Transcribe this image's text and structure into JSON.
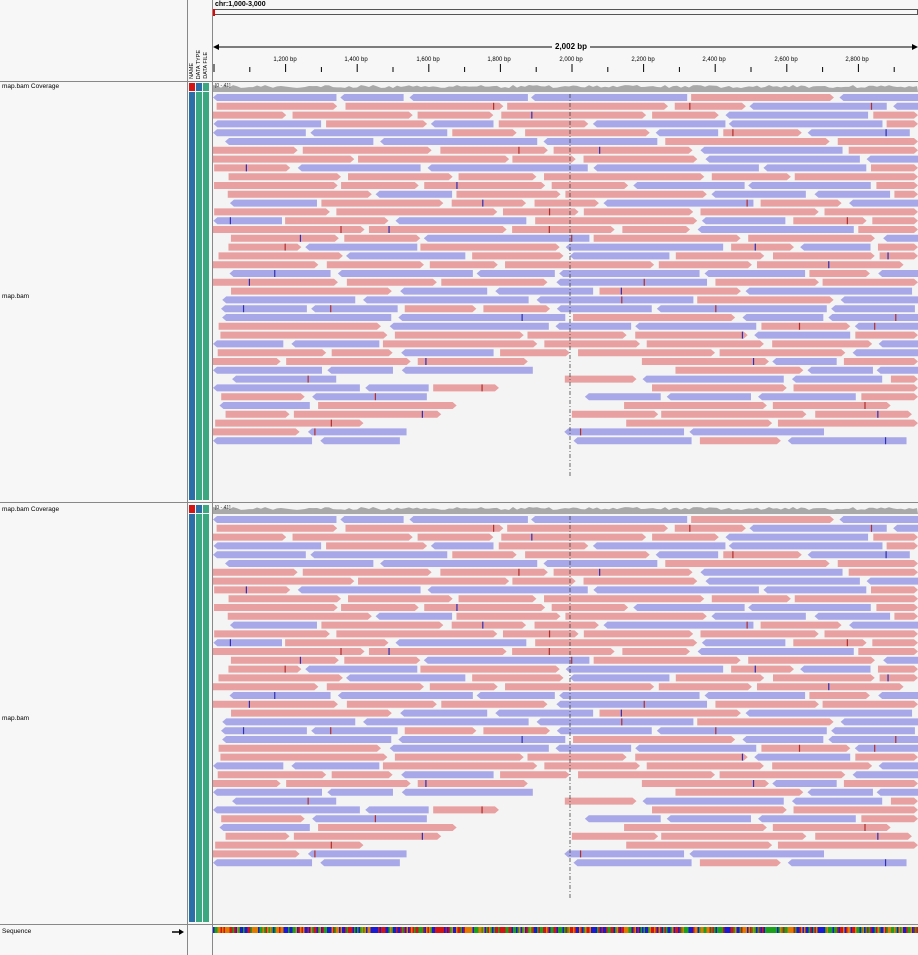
{
  "locus": "chr:1,000-3,000",
  "span_label": "2,002 bp",
  "ticks": [
    "1,200 bp",
    "1,400 bp",
    "1,600 bp",
    "1,800 bp",
    "2,000 bp",
    "2,200 bp",
    "2,400 bp",
    "2,600 bp",
    "2,800 bp"
  ],
  "attribute_headers": [
    "NAME",
    "DATA TYPE",
    "DATA FILE"
  ],
  "tracks": [
    {
      "coverage_name": "map.bam Coverage",
      "coverage_range": "[0 - 41]",
      "alignment_name": "map.bam"
    },
    {
      "coverage_name": "map.bam Coverage",
      "coverage_range": "[0 - 41]",
      "alignment_name": "map.bam"
    }
  ],
  "sequence_label": "Sequence",
  "colors": {
    "forward_read": "#e8a0a0",
    "reverse_read": "#a8a8e8",
    "coverage": "#a9a9a9",
    "attr_name": "#d41414",
    "attr_blue": "#2b6fa8",
    "attr_green": "#3aa880"
  }
}
